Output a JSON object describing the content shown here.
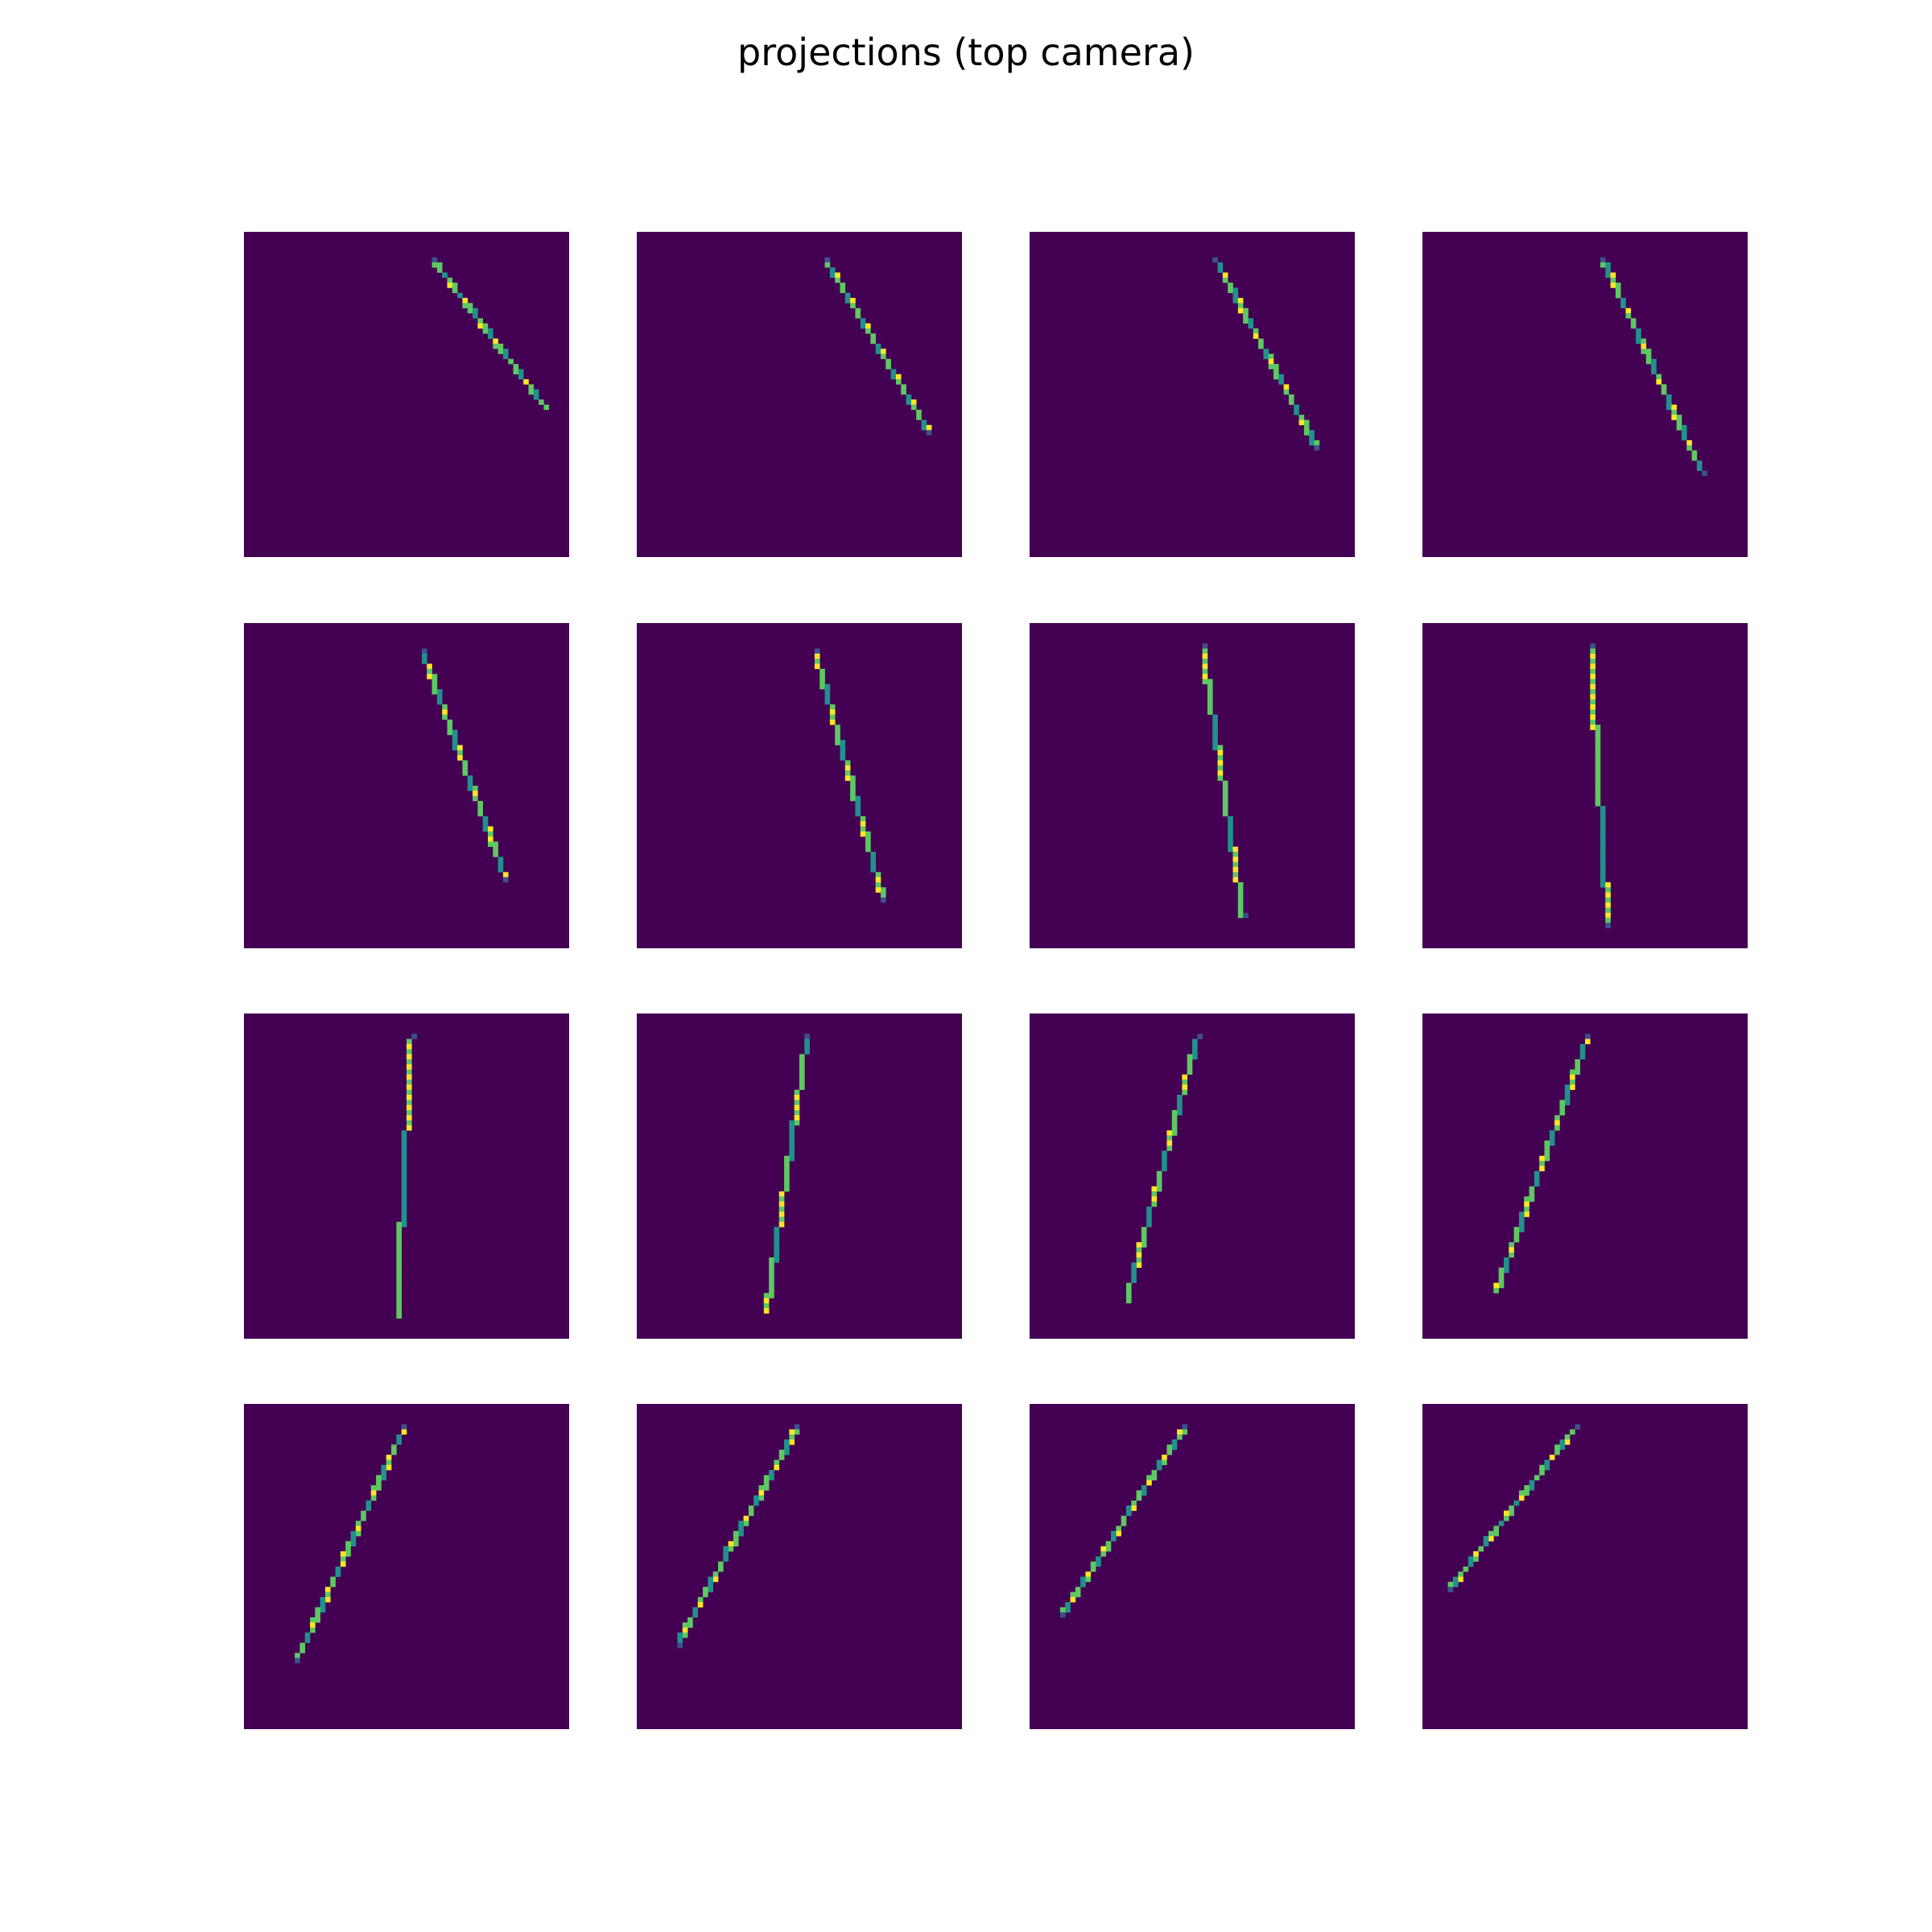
{
  "title": "projections (top camera)",
  "colors": {
    "background": "#440154",
    "dim": "#3b528b",
    "mid": "#21918c",
    "bright": "#5ec962",
    "peak": "#fde725"
  },
  "chart_data": {
    "type": "heatmap",
    "title": "projections (top camera)",
    "layout": "4x4 grid of projection images",
    "axes_visible": false,
    "colormap": "viridis",
    "image_extent": [
      0,
      64,
      0,
      64
    ],
    "panels": [
      {
        "index": 0,
        "start": [
          37.0,
          5.0
        ],
        "end": [
          59.5,
          34.5
        ],
        "thickness": 1.0
      },
      {
        "index": 1,
        "start": [
          37.0,
          5.0
        ],
        "end": [
          57.5,
          39.0
        ],
        "thickness": 1.0
      },
      {
        "index": 2,
        "start": [
          36.5,
          5.0
        ],
        "end": [
          56.5,
          42.0
        ],
        "thickness": 1.0
      },
      {
        "index": 3,
        "start": [
          35.5,
          5.0
        ],
        "end": [
          55.0,
          47.0
        ],
        "thickness": 1.0
      },
      {
        "index": 4,
        "start": [
          35.0,
          5.0
        ],
        "end": [
          51.5,
          50.0
        ],
        "thickness": 1.0
      },
      {
        "index": 5,
        "start": [
          35.0,
          5.0
        ],
        "end": [
          48.5,
          54.0
        ],
        "thickness": 1.0
      },
      {
        "index": 6,
        "start": [
          34.0,
          4.5
        ],
        "end": [
          42.0,
          57.5
        ],
        "thickness": 1.0
      },
      {
        "index": 7,
        "start": [
          33.0,
          4.5
        ],
        "end": [
          36.5,
          59.0
        ],
        "thickness": 1.0
      },
      {
        "index": 8,
        "start": [
          33.0,
          4.5
        ],
        "end": [
          30.0,
          59.5
        ],
        "thickness": 1.0
      },
      {
        "index": 9,
        "start": [
          33.5,
          4.5
        ],
        "end": [
          25.5,
          58.5
        ],
        "thickness": 1.0
      },
      {
        "index": 10,
        "start": [
          33.0,
          4.5
        ],
        "end": [
          19.0,
          56.5
        ],
        "thickness": 1.0
      },
      {
        "index": 11,
        "start": [
          32.5,
          4.5
        ],
        "end": [
          14.5,
          54.5
        ],
        "thickness": 1.0
      },
      {
        "index": 12,
        "start": [
          31.5,
          4.5
        ],
        "end": [
          10.5,
          50.0
        ],
        "thickness": 1.0
      },
      {
        "index": 13,
        "start": [
          31.5,
          4.5
        ],
        "end": [
          8.0,
          47.0
        ],
        "thickness": 1.0
      },
      {
        "index": 14,
        "start": [
          30.5,
          4.5
        ],
        "end": [
          6.5,
          41.0
        ],
        "thickness": 1.0
      },
      {
        "index": 15,
        "start": [
          30.0,
          4.5
        ],
        "end": [
          5.5,
          36.0
        ],
        "thickness": 1.0
      }
    ]
  }
}
